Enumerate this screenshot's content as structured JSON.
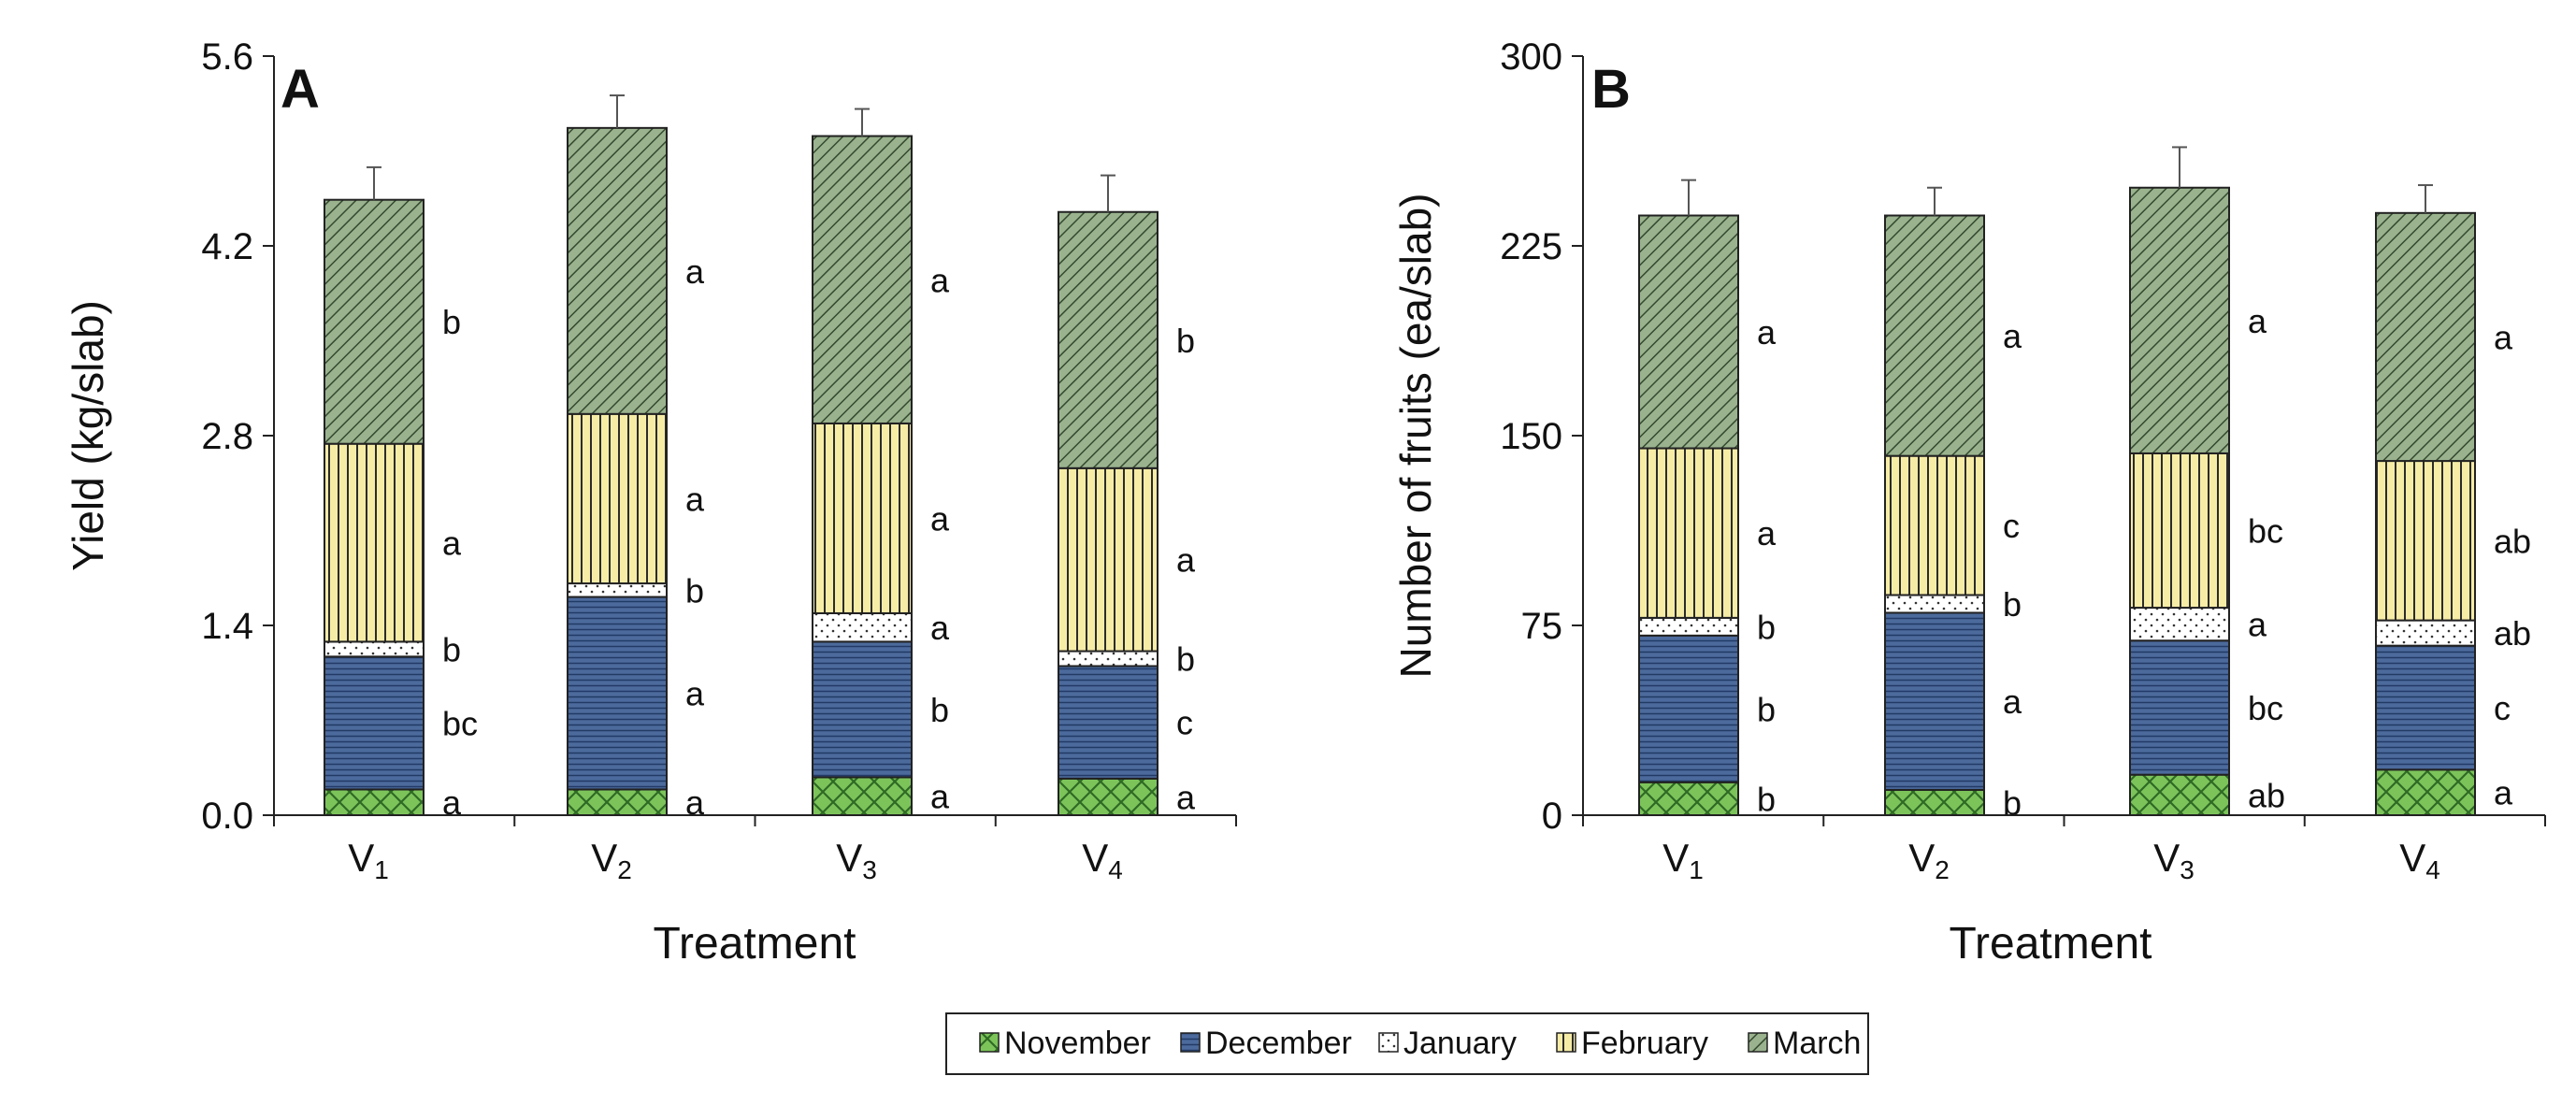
{
  "series_colors": {
    "November": "#7cc45a",
    "December": "#4c6a9c",
    "January": "#ffffff",
    "February": "#f6eca6",
    "March": "#9ab38e"
  },
  "chart_data": [
    {
      "type": "bar",
      "stacked": true,
      "panel_label": "A",
      "xlabel": "Treatment",
      "ylabel": "Yield (kg/slab)",
      "ylim": [
        0,
        5.6
      ],
      "yticks": [
        "0.0",
        "1.4",
        "2.8",
        "4.2",
        "5.6"
      ],
      "categories": [
        {
          "main": "V",
          "sub": "1"
        },
        {
          "main": "V",
          "sub": "2"
        },
        {
          "main": "V",
          "sub": "3"
        },
        {
          "main": "V",
          "sub": "4"
        }
      ],
      "series": [
        {
          "name": "November",
          "values": [
            0.19,
            0.19,
            0.28,
            0.27
          ],
          "letters": [
            "a",
            "a",
            "a",
            "a"
          ]
        },
        {
          "name": "December",
          "values": [
            0.98,
            1.42,
            1.0,
            0.83
          ],
          "letters": [
            "bc",
            "a",
            "b",
            "c"
          ]
        },
        {
          "name": "January",
          "values": [
            0.11,
            0.1,
            0.21,
            0.11
          ],
          "letters": [
            "b",
            "b",
            "a",
            "b"
          ]
        },
        {
          "name": "February",
          "values": [
            1.46,
            1.25,
            1.4,
            1.35
          ],
          "letters": [
            "a",
            "a",
            "a",
            "a"
          ]
        },
        {
          "name": "March",
          "values": [
            1.8,
            2.11,
            2.12,
            1.89
          ],
          "letters": [
            "b",
            "a",
            "a",
            "b"
          ]
        }
      ],
      "totals_error": [
        0.24,
        0.24,
        0.2,
        0.27
      ]
    },
    {
      "type": "bar",
      "stacked": true,
      "panel_label": "B",
      "xlabel": "Treatment",
      "ylabel": "Number of fruits (ea/slab)",
      "ylim": [
        0,
        300
      ],
      "yticks": [
        "0",
        "75",
        "150",
        "225",
        "300"
      ],
      "categories": [
        {
          "main": "V",
          "sub": "1"
        },
        {
          "main": "V",
          "sub": "2"
        },
        {
          "main": "V",
          "sub": "3"
        },
        {
          "main": "V",
          "sub": "4"
        }
      ],
      "series": [
        {
          "name": "November",
          "values": [
            13,
            10,
            16,
            18
          ],
          "letters": [
            "b",
            "b",
            "ab",
            "a"
          ]
        },
        {
          "name": "December",
          "values": [
            58,
            70,
            53,
            49
          ],
          "letters": [
            "b",
            "a",
            "bc",
            "c"
          ]
        },
        {
          "name": "January",
          "values": [
            7,
            7,
            13,
            10
          ],
          "letters": [
            "b",
            "b",
            "a",
            "ab"
          ]
        },
        {
          "name": "February",
          "values": [
            67,
            55,
            61,
            63
          ],
          "letters": [
            "a",
            "c",
            "bc",
            "ab"
          ]
        },
        {
          "name": "March",
          "values": [
            92,
            95,
            105,
            98
          ],
          "letters": [
            "a",
            "a",
            "a",
            "a"
          ]
        }
      ],
      "totals_error": [
        14,
        11,
        16,
        11
      ]
    }
  ],
  "legend": {
    "items": [
      "November",
      "December",
      "January",
      "February",
      "March"
    ]
  }
}
